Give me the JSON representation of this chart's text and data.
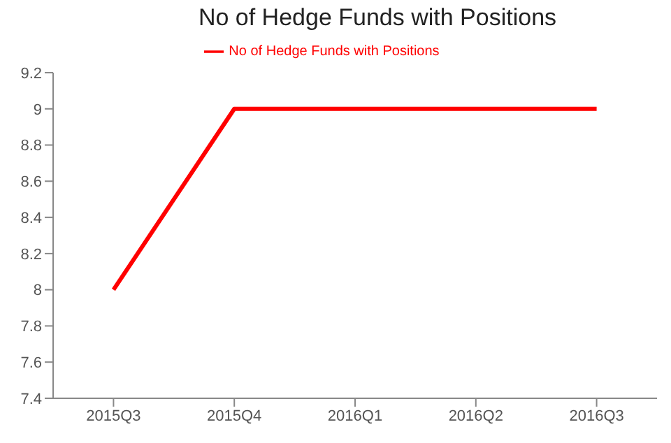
{
  "chart_data": {
    "type": "line",
    "title": "No of Hedge Funds with Positions",
    "categories": [
      "2015Q3",
      "2015Q4",
      "2016Q1",
      "2016Q2",
      "2016Q3"
    ],
    "series": [
      {
        "name": "No of Hedge Funds with Positions",
        "color": "#ff0000",
        "values": [
          8,
          9,
          9,
          9,
          9
        ]
      }
    ],
    "ylim": [
      7.4,
      9.2
    ],
    "yticks": [
      7.4,
      7.6,
      7.8,
      8,
      8.2,
      8.4,
      8.6,
      8.8,
      9,
      9.2
    ],
    "grid": false,
    "legend": "top",
    "marker": "none",
    "line_style": "solid"
  }
}
